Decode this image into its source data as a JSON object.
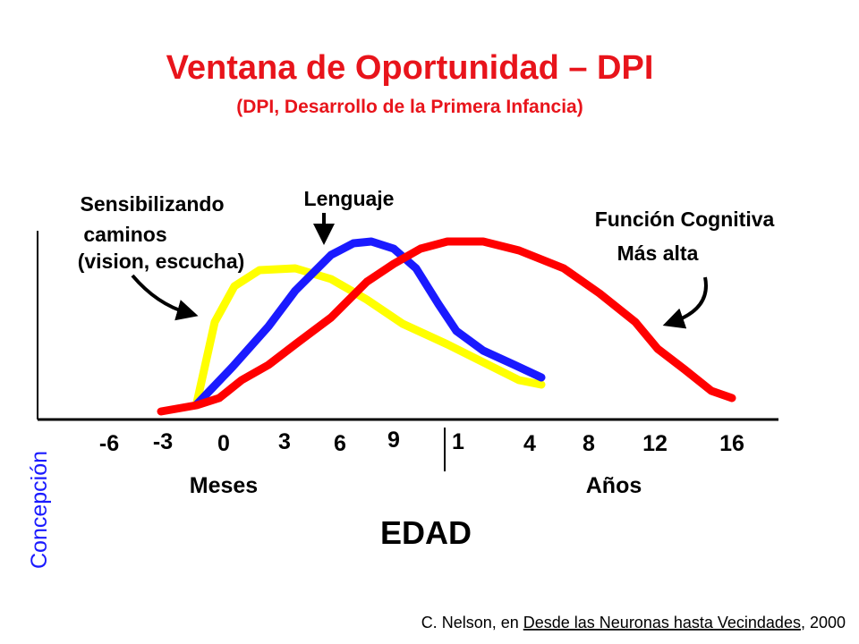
{
  "header": {
    "title": "Ventana de Oportunidad – DPI",
    "subtitle": "(DPI, Desarrollo de la Primera Infancia)"
  },
  "labels": {
    "sensitizing": [
      "Sensibilizando",
      "caminos",
      "(vision, escucha)"
    ],
    "language": "Lenguaje",
    "cognitive": [
      "Función Cognitiva",
      "Más alta"
    ]
  },
  "axis": {
    "ticks": [
      "-6",
      "-3",
      "0",
      "3",
      "6",
      "9",
      "1",
      "4",
      "8",
      "12",
      "16"
    ],
    "months": "Meses",
    "years": "Años",
    "title": "EDAD",
    "conception": "Concepción"
  },
  "citation": {
    "author": "C. Nelson, en ",
    "work": "Desde las Neuronas hasta Vecindades",
    "year": ", 2000"
  }
}
